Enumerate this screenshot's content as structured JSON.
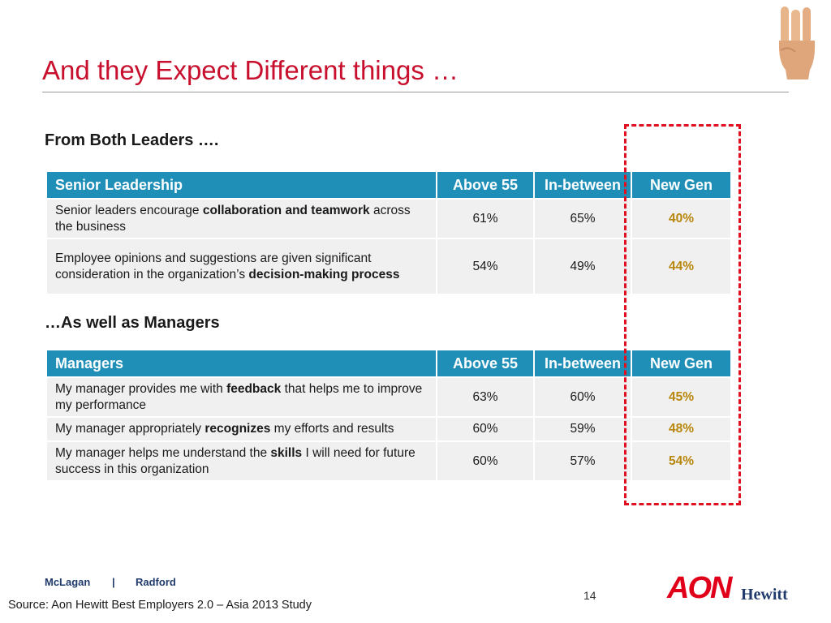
{
  "slide": {
    "title": "And they Expect Different things …",
    "page_number": "14",
    "source": "Source: Aon Hewitt Best Employers 2.0 – Asia 2013 Study"
  },
  "section_leaders": {
    "heading": "From Both Leaders ….",
    "header": [
      "Senior Leadership",
      "Above 55",
      "In-between",
      "New Gen"
    ],
    "rows": [
      {
        "pre": "Senior leaders encourage ",
        "bold": "collaboration and teamwork",
        "post": " across the business",
        "above55": "61%",
        "inbetween": "65%",
        "newgen": "40%"
      },
      {
        "pre": "Employee opinions and suggestions are given significant consideration in the organization’s ",
        "bold": "decision-making process",
        "post": "",
        "above55": "54%",
        "inbetween": "49%",
        "newgen": "44%"
      }
    ]
  },
  "section_managers": {
    "heading": "…As well as Managers",
    "header": [
      "Managers",
      "Above 55",
      "In-between",
      "New Gen"
    ],
    "rows": [
      {
        "pre": "My manager provides me with ",
        "bold": "feedback",
        "post": " that helps me to improve my performance",
        "above55": "63%",
        "inbetween": "60%",
        "newgen": "45%"
      },
      {
        "pre": "My manager appropriately ",
        "bold": "recognizes",
        "post": " my efforts and results",
        "above55": "60%",
        "inbetween": "59%",
        "newgen": "48%"
      },
      {
        "pre": "My manager helps me understand the ",
        "bold": "skills",
        "post": " I will need for future success in this organization",
        "above55": "60%",
        "inbetween": "57%",
        "newgen": "54%"
      }
    ]
  },
  "footer": {
    "brand_left": "McLagan",
    "separator": "|",
    "brand_right": "Radford",
    "logo_aon": "AON",
    "logo_hewitt": "Hewitt"
  },
  "icons": {
    "hand": "three-fingers-hand-icon",
    "highlight": "dashed-highlight-box"
  },
  "colors": {
    "title": "#c8102e",
    "table_header": "#1f8fb8",
    "new_gen_value": "#b8860b",
    "highlight_border": "#e01020"
  }
}
